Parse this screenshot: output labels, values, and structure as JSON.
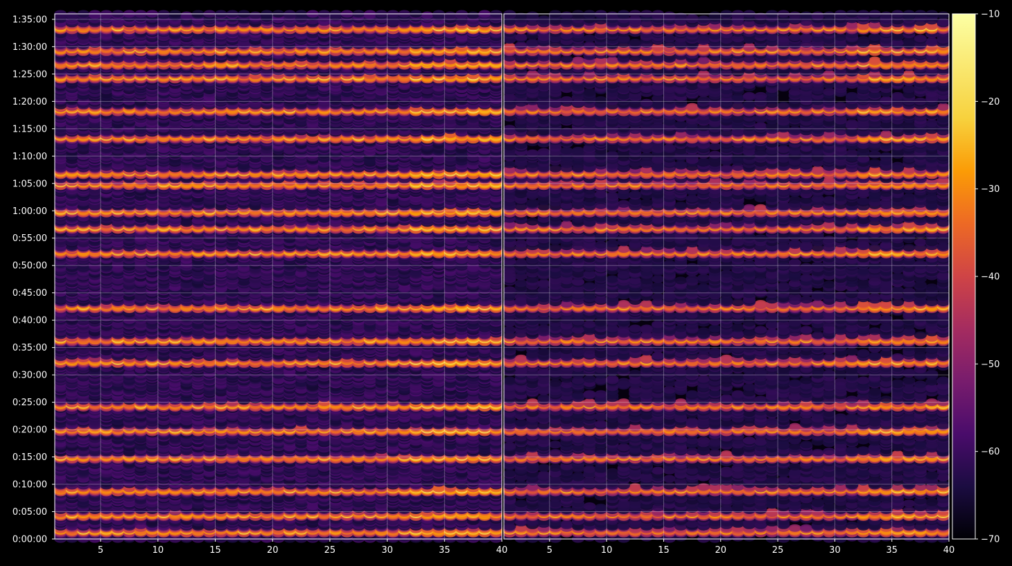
{
  "chart_data": {
    "type": "heatmap",
    "title": "",
    "panels": [
      {
        "name": "",
        "xlim": [
          1,
          40
        ]
      },
      {
        "name": "",
        "xlim": [
          1,
          40
        ]
      }
    ],
    "x_ticks": [
      5,
      10,
      15,
      20,
      25,
      30,
      35,
      40
    ],
    "x_tick_labels": [
      "5",
      "10",
      "15",
      "20",
      "25",
      "30",
      "35",
      "40"
    ],
    "y_tick_labels": [
      "0:00:00",
      "0:05:00",
      "0:10:00",
      "0:15:00",
      "0:20:00",
      "0:25:00",
      "0:30:00",
      "0:35:00",
      "0:40:00",
      "0:45:00",
      "0:50:00",
      "0:55:00",
      "1:00:00",
      "1:05:00",
      "1:10:00",
      "1:15:00",
      "1:20:00",
      "1:25:00",
      "1:30:00",
      "1:35:00"
    ],
    "ylim_seconds": [
      0,
      5760
    ],
    "columns": 39,
    "colorbar": {
      "colormap": "inferno",
      "range": [
        -70,
        -10
      ],
      "ticks": [
        -70,
        -60,
        -50,
        -40,
        -30,
        -20,
        -10
      ],
      "tick_labels": [
        "−70",
        "−60",
        "−50",
        "−40",
        "−30",
        "−20",
        "−10"
      ]
    },
    "grid": true,
    "bright_bands_hhmmss": [
      "0:01:30",
      "0:04:30",
      "0:09:00",
      "0:15:00",
      "0:20:00",
      "0:24:30",
      "0:32:30",
      "0:36:30",
      "0:42:30",
      "0:52:30",
      "0:57:00",
      "1:00:00",
      "1:05:00",
      "1:07:00",
      "1:13:30",
      "1:18:30",
      "1:24:30",
      "1:27:00",
      "1:29:30",
      "1:33:30"
    ]
  }
}
